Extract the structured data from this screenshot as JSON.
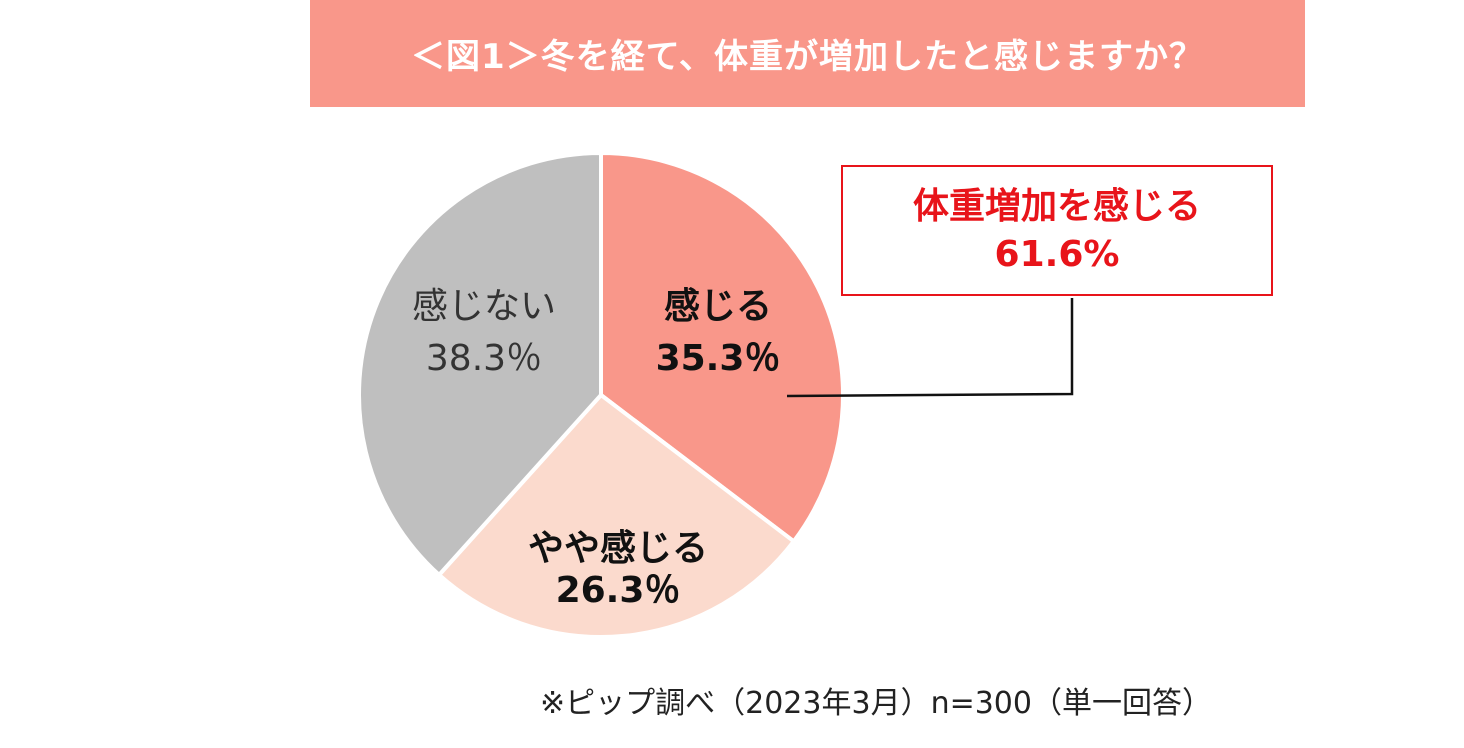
{
  "header": {
    "title": "＜図1＞冬を経て、体重が増加したと感じますか？"
  },
  "chart_data": {
    "type": "pie",
    "title": "＜図1＞冬を経て、体重が増加したと感じますか？",
    "slices": [
      {
        "label": "感じる",
        "value": 35.3,
        "value_label": "35.3％",
        "color": "#f9978a",
        "label_color": "#111111",
        "bold": true
      },
      {
        "label": "やや感じる",
        "value": 26.3,
        "value_label": "26.3％",
        "color": "#fbdacd",
        "label_color": "#111111",
        "bold": true
      },
      {
        "label": "感じない",
        "value": 38.3,
        "value_label": "38.3％",
        "color": "#bfbfbf",
        "label_color": "#333333",
        "bold": false
      }
    ],
    "start_angle": "12 o'clock",
    "direction": "clockwise",
    "annotation": {
      "line1": "体重増加を感じる",
      "line2": "61.6%",
      "color": "#e8141a"
    }
  },
  "footnote": "※ピップ調べ（2023年3月）n=300（単一回答）"
}
